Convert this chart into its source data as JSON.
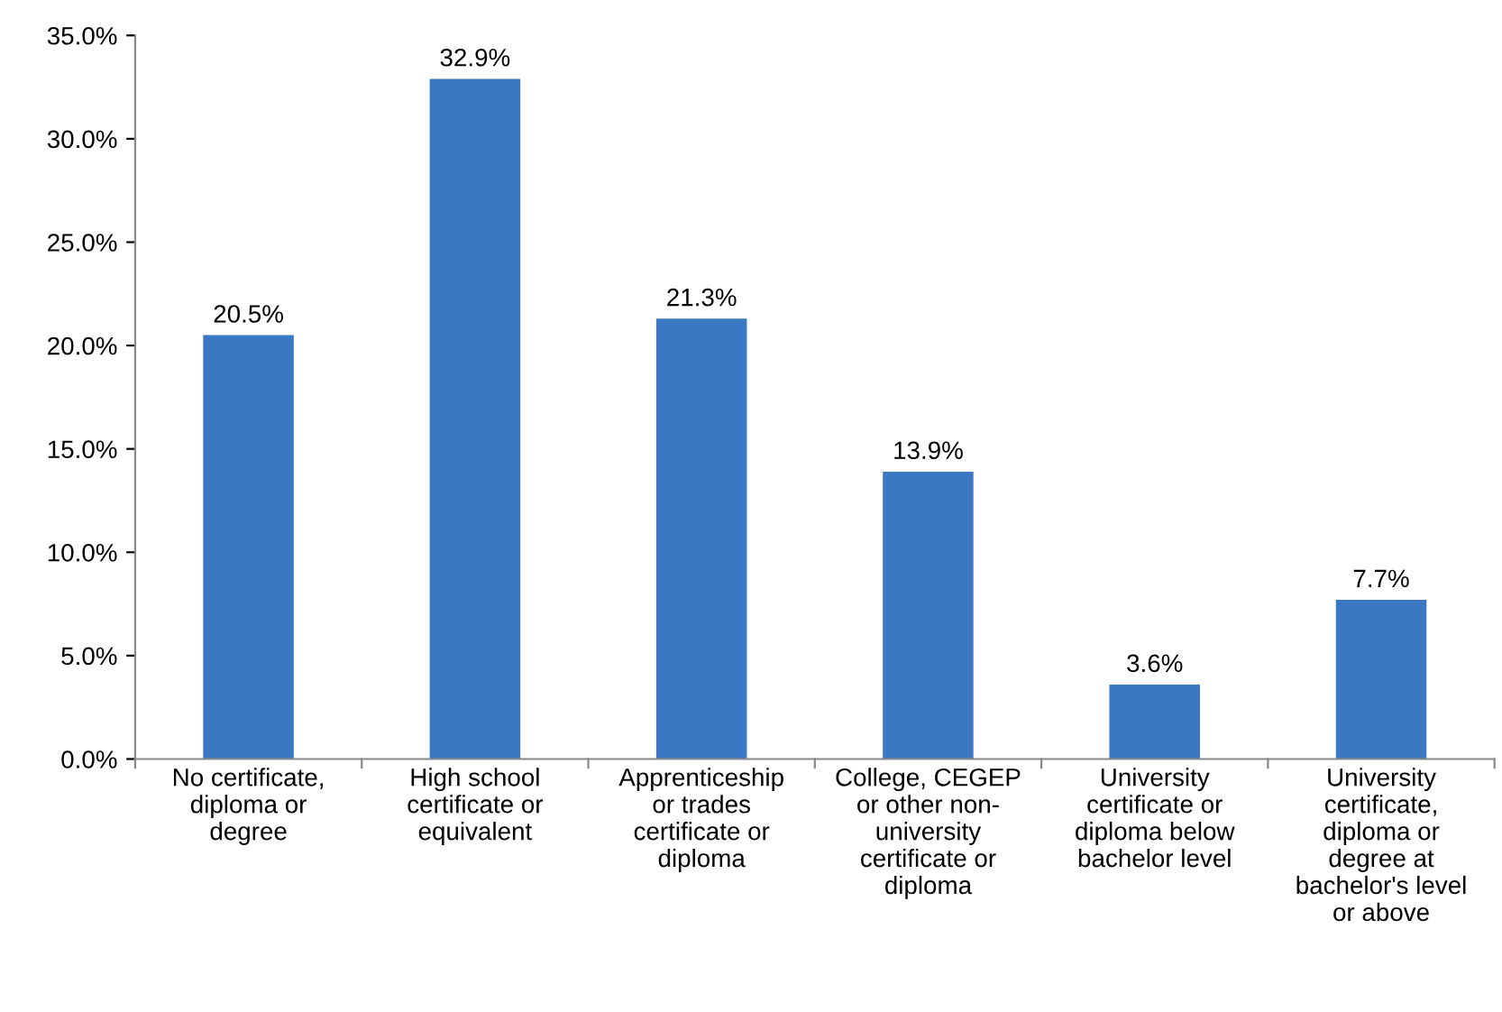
{
  "chart_data": {
    "type": "bar",
    "categories": [
      "No certificate,\ndiploma or\ndegree",
      "High school\ncertificate or\nequivalent",
      "Apprenticeship\nor trades\ncertificate or\ndiploma",
      "College, CEGEP\nor other non-\nuniversity\ncertificate or\ndiploma",
      "University\ncertificate or\ndiploma below\nbachelor level",
      "University\ncertificate,\ndiploma or\ndegree at\nbachelor's level\nor above"
    ],
    "values": [
      20.5,
      32.9,
      21.3,
      13.9,
      3.6,
      7.7
    ],
    "value_labels": [
      "20.5%",
      "32.9%",
      "21.3%",
      "13.9%",
      "3.6%",
      "7.7%"
    ],
    "color": "#3a78c4",
    "ylim": [
      0,
      35
    ],
    "yticks": [
      {
        "value": 0,
        "label": "0.0%"
      },
      {
        "value": 5,
        "label": "5.0%"
      },
      {
        "value": 10,
        "label": "10.0%"
      },
      {
        "value": 15,
        "label": "15.0%"
      },
      {
        "value": 20,
        "label": "20.0%"
      },
      {
        "value": 25,
        "label": "25.0%"
      },
      {
        "value": 30,
        "label": "30.0%"
      },
      {
        "value": 35,
        "label": "35.0%"
      }
    ],
    "grid": false,
    "legend": false
  }
}
